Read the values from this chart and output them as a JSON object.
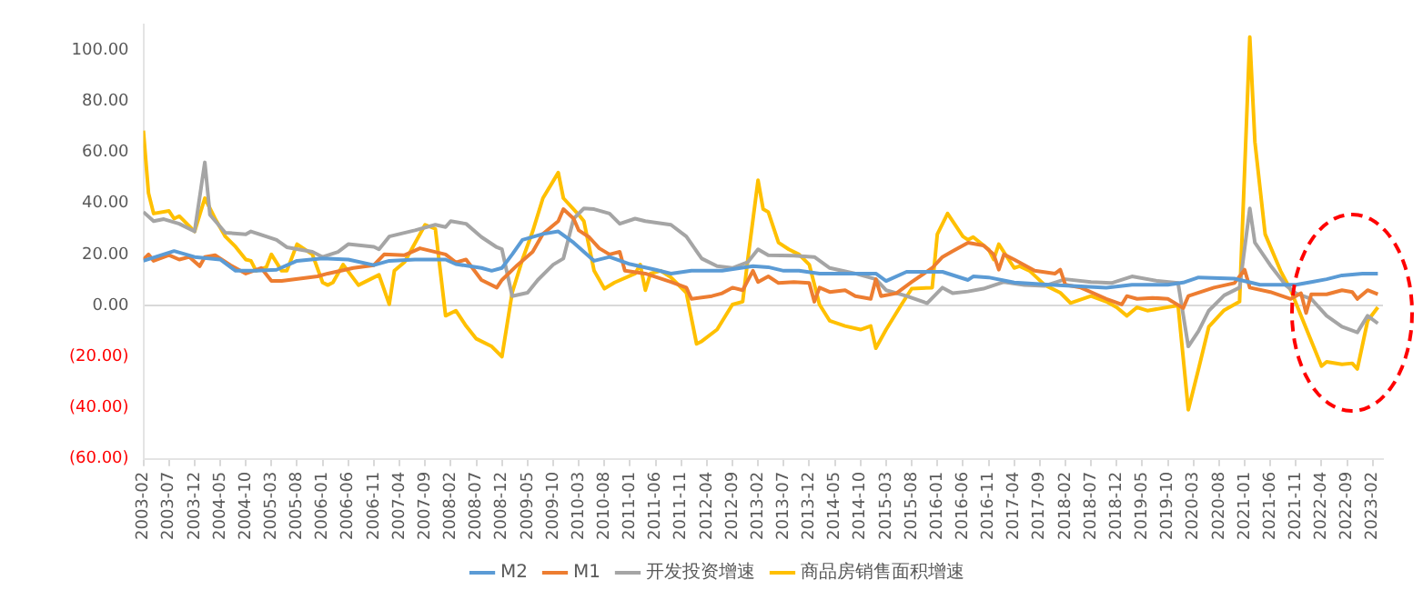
{
  "chart_data": {
    "type": "line",
    "legend": "bottom",
    "xlim": [
      "2003-02",
      "2023-04"
    ],
    "xticks": [
      "2003-02",
      "2003-07",
      "2003-12",
      "2004-05",
      "2004-10",
      "2005-03",
      "2005-08",
      "2006-01",
      "2006-06",
      "2006-11",
      "2007-04",
      "2007-09",
      "2008-02",
      "2008-07",
      "2008-12",
      "2009-05",
      "2009-10",
      "2010-03",
      "2010-08",
      "2011-01",
      "2011-06",
      "2011-11",
      "2012-04",
      "2012-09",
      "2013-02",
      "2013-07",
      "2013-12",
      "2014-05",
      "2014-10",
      "2015-03",
      "2015-08",
      "2016-01",
      "2016-06",
      "2016-11",
      "2017-04",
      "2017-09",
      "2018-02",
      "2018-07",
      "2018-12",
      "2019-05",
      "2019-10",
      "2020-03",
      "2020-08",
      "2021-01",
      "2021-06",
      "2021-11",
      "2022-04",
      "2022-09",
      "2023-02"
    ],
    "ylim": [
      -60,
      110
    ],
    "yticks": [
      {
        "value": -60,
        "label": "(60.00)"
      },
      {
        "value": -40,
        "label": "(40.00)"
      },
      {
        "value": -20,
        "label": "(20.00)"
      },
      {
        "value": 0,
        "label": "0.00"
      },
      {
        "value": 20,
        "label": "20.00"
      },
      {
        "value": 40,
        "label": "40.00"
      },
      {
        "value": 60,
        "label": "60.00"
      },
      {
        "value": 80,
        "label": "80.00"
      },
      {
        "value": 100,
        "label": "100.00"
      }
    ],
    "series": [
      {
        "name": "M2",
        "color": "#5b9bd5",
        "x": [
          "2003-02",
          "2003-08",
          "2003-12",
          "2004-05",
          "2004-08",
          "2004-12",
          "2005-04",
          "2005-08",
          "2006-01",
          "2006-06",
          "2006-11",
          "2007-02",
          "2007-07",
          "2008-01",
          "2008-03",
          "2008-08",
          "2008-10",
          "2008-12",
          "2009-02",
          "2009-04",
          "2009-08",
          "2009-11",
          "2010-02",
          "2010-06",
          "2010-09",
          "2011-01",
          "2011-06",
          "2011-09",
          "2012-01",
          "2012-07",
          "2013-01",
          "2013-04",
          "2013-07",
          "2013-10",
          "2014-02",
          "2014-07",
          "2015-01",
          "2015-03",
          "2015-07",
          "2016-02",
          "2016-07",
          "2016-08",
          "2016-11",
          "2017-04",
          "2017-11",
          "2018-05",
          "2018-10",
          "2019-03",
          "2019-10",
          "2020-01",
          "2020-04",
          "2020-11",
          "2021-04",
          "2021-11",
          "2022-02",
          "2022-05",
          "2022-08",
          "2022-12",
          "2023-03"
        ],
        "values": [
          17.5,
          21.3,
          19,
          18,
          13.6,
          13.6,
          14,
          17.5,
          18.4,
          18,
          15.8,
          17.5,
          18,
          18,
          16.2,
          14.7,
          13.6,
          14.7,
          20,
          25.7,
          28,
          29,
          24.6,
          17.5,
          19,
          16.2,
          14,
          12.5,
          13.6,
          13.6,
          15.4,
          15,
          13.6,
          13.6,
          12.5,
          12.5,
          12.5,
          9.6,
          13.2,
          13.2,
          10,
          11.4,
          11,
          9,
          8.1,
          7.5,
          7,
          8.1,
          8.1,
          9,
          11,
          10.5,
          8.1,
          8.1,
          9.2,
          10.3,
          11.8,
          12.5,
          12.5
        ]
      },
      {
        "name": "M1",
        "color": "#ed7d31",
        "x": [
          "2003-02",
          "2003-03",
          "2003-04",
          "2003-07",
          "2003-09",
          "2003-11",
          "2004-01",
          "2004-02",
          "2004-04",
          "2004-07",
          "2004-10",
          "2005-01",
          "2005-03",
          "2005-05",
          "2005-12",
          "2006-02",
          "2006-07",
          "2006-11",
          "2007-01",
          "2007-05",
          "2007-08",
          "2008-01",
          "2008-03",
          "2008-05",
          "2008-08",
          "2008-11",
          "2008-12",
          "2009-03",
          "2009-06",
          "2009-08",
          "2009-11",
          "2009-12",
          "2010-02",
          "2010-03",
          "2010-05",
          "2010-07",
          "2010-09",
          "2010-11",
          "2010-12",
          "2011-04",
          "2011-09",
          "2011-12",
          "2012-01",
          "2012-05",
          "2012-07",
          "2012-09",
          "2012-11",
          "2013-01",
          "2013-02",
          "2013-04",
          "2013-06",
          "2013-09",
          "2013-12",
          "2014-01",
          "2014-02",
          "2014-04",
          "2014-07",
          "2014-09",
          "2014-12",
          "2015-01",
          "2015-02",
          "2015-05",
          "2015-08",
          "2015-12",
          "2016-02",
          "2016-04",
          "2016-07",
          "2016-10",
          "2016-12",
          "2017-01",
          "2017-02",
          "2017-04",
          "2017-08",
          "2017-12",
          "2018-01",
          "2018-02",
          "2018-05",
          "2018-10",
          "2019-01",
          "2019-02",
          "2019-04",
          "2019-07",
          "2019-10",
          "2020-01",
          "2020-02",
          "2020-07",
          "2020-11",
          "2021-01",
          "2021-02",
          "2021-06",
          "2021-10",
          "2021-12",
          "2022-01",
          "2022-02",
          "2022-05",
          "2022-08",
          "2022-10",
          "2022-11",
          "2023-01",
          "2023-03"
        ],
        "values": [
          18,
          20,
          17.5,
          19.7,
          18,
          19,
          15.4,
          19,
          19.7,
          15.8,
          12.5,
          14.7,
          9.6,
          9.6,
          11.4,
          12.5,
          14.7,
          15.8,
          20,
          19.7,
          22.4,
          20,
          16.9,
          18,
          10,
          7,
          10,
          15.8,
          21,
          28,
          33,
          37.7,
          34,
          29.4,
          26.8,
          22.4,
          20,
          21,
          13.6,
          12.5,
          9.2,
          7,
          2.6,
          3.7,
          4.8,
          7,
          6,
          13.6,
          9.2,
          11.4,
          8.8,
          9.2,
          8.8,
          1.5,
          7,
          5.3,
          6,
          3.7,
          2.6,
          10.3,
          3.7,
          4.8,
          9.2,
          14.7,
          19,
          21.3,
          24.6,
          23.5,
          20,
          14,
          20,
          18,
          13.6,
          12.5,
          14,
          8.1,
          7,
          2.6,
          0.4,
          3.7,
          2.6,
          3,
          2.6,
          -1,
          3.7,
          7,
          8.8,
          14,
          7,
          5.3,
          2.6,
          4.8,
          -2.9,
          4.4,
          4.4,
          6,
          5.3,
          2.6,
          6,
          4.4
        ]
      },
      {
        "name": "开发投资增速",
        "color": "#a5a5a5",
        "x": [
          "2003-02",
          "2003-04",
          "2003-06",
          "2003-09",
          "2003-12",
          "2004-02",
          "2004-03",
          "2004-06",
          "2004-10",
          "2004-11",
          "2005-04",
          "2005-06",
          "2005-11",
          "2006-01",
          "2006-04",
          "2006-06",
          "2006-11",
          "2006-12",
          "2007-02",
          "2007-07",
          "2007-11",
          "2008-01",
          "2008-02",
          "2008-05",
          "2008-08",
          "2008-11",
          "2008-12",
          "2009-02",
          "2009-05",
          "2009-07",
          "2009-10",
          "2009-12",
          "2010-02",
          "2010-04",
          "2010-06",
          "2010-09",
          "2010-11",
          "2011-02",
          "2011-04",
          "2011-09",
          "2011-12",
          "2012-03",
          "2012-06",
          "2012-09",
          "2012-12",
          "2013-02",
          "2013-04",
          "2013-09",
          "2014-01",
          "2014-04",
          "2014-09",
          "2015-01",
          "2015-03",
          "2015-07",
          "2015-11",
          "2016-02",
          "2016-04",
          "2016-07",
          "2016-10",
          "2017-02",
          "2017-06",
          "2017-10",
          "2018-02",
          "2018-07",
          "2018-11",
          "2019-03",
          "2019-08",
          "2019-12",
          "2020-02",
          "2020-04",
          "2020-06",
          "2020-09",
          "2020-12",
          "2021-02",
          "2021-03",
          "2021-06",
          "2021-09",
          "2021-11",
          "2022-02",
          "2022-05",
          "2022-08",
          "2022-11",
          "2023-01",
          "2023-03"
        ],
        "values": [
          36.6,
          33,
          33.8,
          32,
          29,
          56,
          35.5,
          28.5,
          27.9,
          29,
          25.7,
          22.8,
          21,
          19,
          21,
          24,
          23,
          22,
          27,
          29.4,
          31.6,
          30.7,
          33,
          32,
          26.8,
          22.8,
          22,
          3.7,
          5,
          10,
          16,
          18.4,
          34,
          38,
          37.7,
          36,
          32,
          34,
          33,
          31.6,
          27,
          18.4,
          15.4,
          14.7,
          17,
          22,
          19.7,
          19.5,
          19,
          14.7,
          12.5,
          10.3,
          6,
          3.7,
          0.9,
          7,
          4.8,
          5.5,
          6.6,
          9.2,
          8,
          7.7,
          10.3,
          9.2,
          8.8,
          11.4,
          9.6,
          8.8,
          -16,
          -10,
          -2,
          4,
          7,
          38,
          24.6,
          15.8,
          8,
          4.8,
          2.6,
          -4,
          -8.3,
          -10.5,
          -4,
          -7
        ]
      },
      {
        "name": "商品房销售面积增速",
        "color": "#ffc000",
        "x": [
          "2003-02",
          "2003-03",
          "2003-04",
          "2003-07",
          "2003-08",
          "2003-09",
          "2003-12",
          "2004-02",
          "2004-04",
          "2004-06",
          "2004-08",
          "2004-10",
          "2004-11",
          "2004-12",
          "2005-02",
          "2005-03",
          "2005-05",
          "2005-06",
          "2005-08",
          "2005-11",
          "2006-01",
          "2006-02",
          "2006-03",
          "2006-05",
          "2006-08",
          "2006-12",
          "2007-02",
          "2007-03",
          "2007-05",
          "2007-09",
          "2007-11",
          "2008-01",
          "2008-03",
          "2008-05",
          "2008-07",
          "2008-10",
          "2008-12",
          "2009-02",
          "2009-04",
          "2009-06",
          "2009-08",
          "2009-11",
          "2009-12",
          "2010-03",
          "2010-04",
          "2010-06",
          "2010-08",
          "2010-10",
          "2011-02",
          "2011-03",
          "2011-04",
          "2011-05",
          "2011-07",
          "2011-09",
          "2011-12",
          "2012-02",
          "2012-03",
          "2012-06",
          "2012-09",
          "2012-11",
          "2012-12",
          "2013-02",
          "2013-03",
          "2013-04",
          "2013-06",
          "2013-08",
          "2013-10",
          "2013-12",
          "2014-02",
          "2014-04",
          "2014-07",
          "2014-10",
          "2014-12",
          "2015-01",
          "2015-03",
          "2015-06",
          "2015-08",
          "2015-12",
          "2016-01",
          "2016-03",
          "2016-06",
          "2016-07",
          "2016-08",
          "2016-11",
          "2016-12",
          "2017-01",
          "2017-04",
          "2017-05",
          "2017-07",
          "2017-10",
          "2018-01",
          "2018-03",
          "2018-07",
          "2018-10",
          "2018-12",
          "2019-02",
          "2019-04",
          "2019-06",
          "2019-09",
          "2019-12",
          "2020-02",
          "2020-04",
          "2020-06",
          "2020-09",
          "2020-12",
          "2021-02",
          "2021-03",
          "2021-05",
          "2021-08",
          "2021-10",
          "2021-12",
          "2022-04",
          "2022-05",
          "2022-08",
          "2022-10",
          "2022-11",
          "2023-01",
          "2023-03"
        ],
        "values": [
          68.4,
          44,
          36,
          37,
          34,
          35,
          29,
          42,
          34,
          27,
          23,
          18,
          17.5,
          13.6,
          15,
          20,
          13.6,
          13.6,
          24,
          20,
          9,
          8,
          9,
          16,
          8,
          12,
          0.5,
          13.6,
          17,
          31.6,
          30,
          -4,
          -2,
          -8,
          -13,
          -16,
          -20,
          5,
          18,
          29,
          42,
          52,
          42,
          35.5,
          33,
          13.6,
          6.6,
          9,
          12.5,
          16,
          6,
          12.5,
          13.6,
          11,
          5,
          -15,
          -14,
          -9.4,
          0.4,
          1.5,
          18,
          49,
          37.7,
          36.6,
          24.6,
          22,
          20,
          16,
          0.4,
          -6,
          -8,
          -9.4,
          -8,
          -16.7,
          -9.4,
          0.4,
          6.6,
          7,
          27.9,
          36,
          27,
          25.7,
          26.8,
          22,
          18,
          24,
          14.7,
          15.4,
          13.6,
          8,
          5,
          1,
          3.7,
          1.5,
          -0.7,
          -4,
          -0.7,
          -2,
          -1,
          0,
          -40.8,
          -24.8,
          -8.3,
          -1.8,
          1.5,
          105,
          64,
          27.9,
          13.6,
          6,
          -4,
          -23.7,
          -22,
          -23,
          -22.6,
          -24.8,
          -6,
          -0.7
        ]
      }
    ]
  }
}
